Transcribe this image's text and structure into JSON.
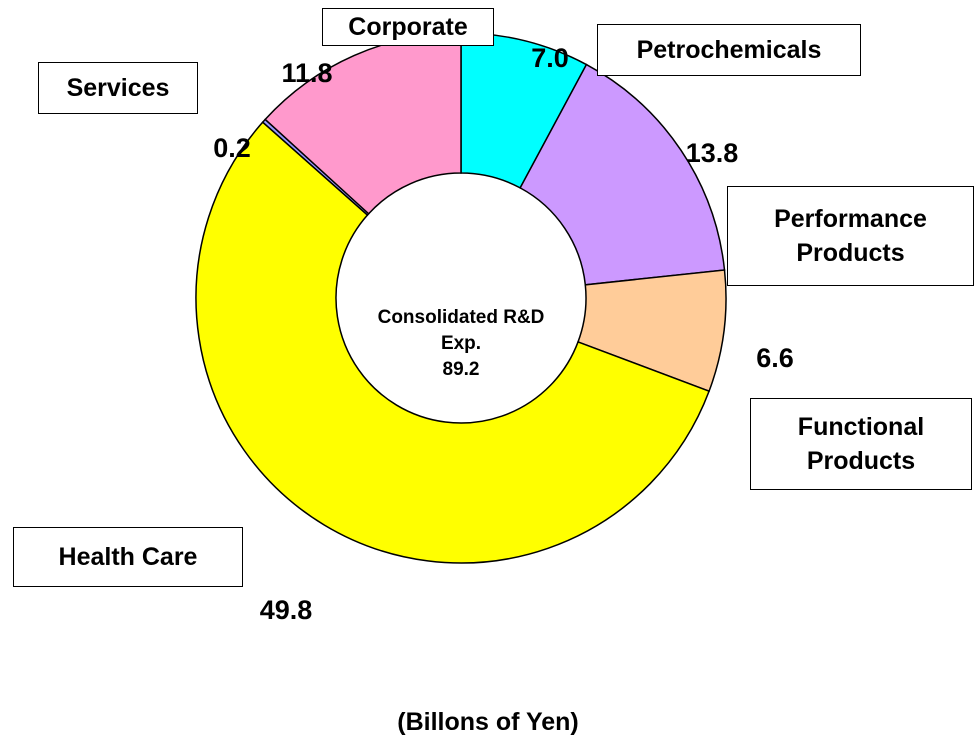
{
  "chart_data": {
    "type": "donut",
    "categories": [
      "Petrochemicals",
      "Performance Products",
      "Functional Products",
      "Health Care",
      "Services",
      "Corporate"
    ],
    "values": [
      7.0,
      13.8,
      6.6,
      49.8,
      0.2,
      11.8
    ],
    "value_labels": [
      "7.0",
      "13.8",
      "6.6",
      "49.8",
      "0.2",
      "11.8"
    ],
    "colors": [
      "#00ffff",
      "#cc99ff",
      "#ffcc99",
      "#ffff00",
      "#9999ff",
      "#ff99cc"
    ],
    "center_text": "Consolidated R&D Exp.",
    "total": 89.2,
    "footnote": "(Billons of Yen)"
  }
}
